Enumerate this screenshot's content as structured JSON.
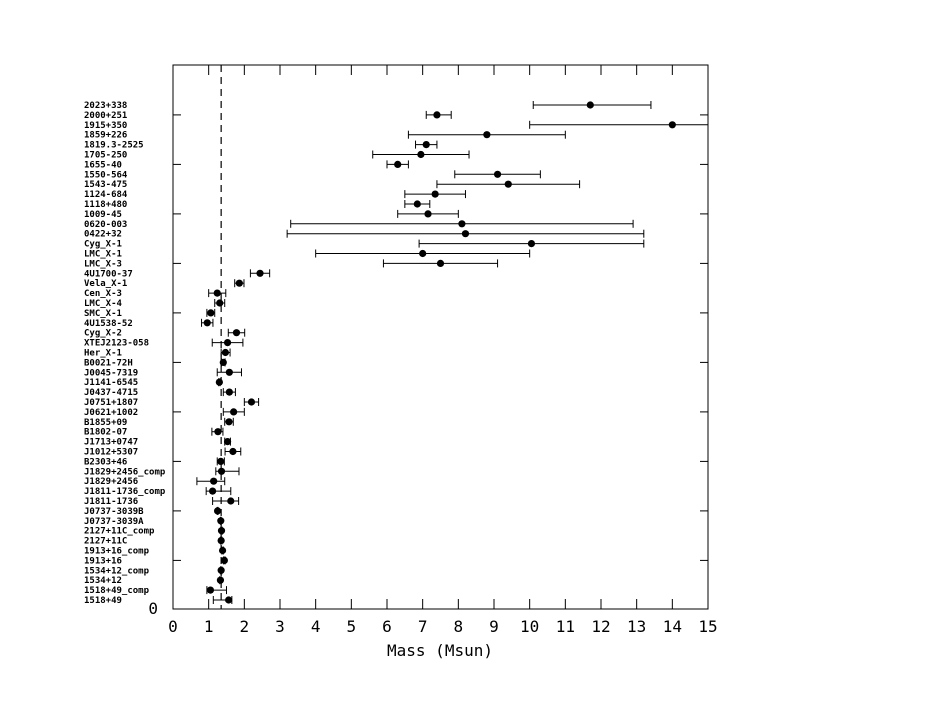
{
  "chart_data": {
    "type": "scatter",
    "title": "",
    "xlabel": "Mass (Msun)",
    "ylabel": "",
    "xlim": [
      0,
      15
    ],
    "xticks": [
      "0",
      "1",
      "2",
      "3",
      "4",
      "5",
      "6",
      "7",
      "8",
      "9",
      "10",
      "11",
      "12",
      "13",
      "14",
      "15"
    ],
    "y_zero_label": "0",
    "reference_line_x": 1.35,
    "grid": false,
    "legend": "none",
    "colors": {
      "marker": "#000000",
      "axis": "#000000",
      "background": "#ffffff"
    },
    "points": [
      {
        "name": "2023+338",
        "x": 11.7,
        "err_low": 10.1,
        "err_high": 13.4
      },
      {
        "name": "2000+251",
        "x": 7.4,
        "err_low": 7.1,
        "err_high": 7.8
      },
      {
        "name": "1915+350",
        "x": 14.0,
        "err_low": 10.0,
        "err_high": 15.0
      },
      {
        "name": "1859+226",
        "x": 8.8,
        "err_low": 6.6,
        "err_high": 11.0
      },
      {
        "name": "1819.3-2525",
        "x": 7.1,
        "err_low": 6.8,
        "err_high": 7.4
      },
      {
        "name": "1705-250",
        "x": 6.95,
        "err_low": 5.6,
        "err_high": 8.3
      },
      {
        "name": "1655-40",
        "x": 6.3,
        "err_low": 6.0,
        "err_high": 6.6
      },
      {
        "name": "1550-564",
        "x": 9.1,
        "err_low": 7.9,
        "err_high": 10.3
      },
      {
        "name": "1543-475",
        "x": 9.4,
        "err_low": 7.4,
        "err_high": 11.4
      },
      {
        "name": "1124-684",
        "x": 7.35,
        "err_low": 6.5,
        "err_high": 8.2
      },
      {
        "name": "1118+480",
        "x": 6.85,
        "err_low": 6.5,
        "err_high": 7.2
      },
      {
        "name": "1009-45",
        "x": 7.15,
        "err_low": 6.3,
        "err_high": 8.0
      },
      {
        "name": "0620-003",
        "x": 8.1,
        "err_low": 3.3,
        "err_high": 12.9
      },
      {
        "name": "0422+32",
        "x": 8.2,
        "err_low": 3.2,
        "err_high": 13.2
      },
      {
        "name": "Cyg_X-1",
        "x": 10.05,
        "err_low": 6.9,
        "err_high": 13.2
      },
      {
        "name": "LMC_X-1",
        "x": 7.0,
        "err_low": 4.0,
        "err_high": 10.0
      },
      {
        "name": "LMC_X-3",
        "x": 7.5,
        "err_low": 5.9,
        "err_high": 9.1
      },
      {
        "name": "4U1700-37",
        "x": 2.44,
        "err_low": 2.17,
        "err_high": 2.71
      },
      {
        "name": "Vela_X-1",
        "x": 1.86,
        "err_low": 1.73,
        "err_high": 1.99
      },
      {
        "name": "Cen_X-3",
        "x": 1.24,
        "err_low": 1.0,
        "err_high": 1.48
      },
      {
        "name": "LMC_X-4",
        "x": 1.31,
        "err_low": 1.17,
        "err_high": 1.45
      },
      {
        "name": "SMC_X-1",
        "x": 1.06,
        "err_low": 0.95,
        "err_high": 1.17
      },
      {
        "name": "4U1538-52",
        "x": 0.96,
        "err_low": 0.8,
        "err_high": 1.12
      },
      {
        "name": "Cyg_X-2",
        "x": 1.78,
        "err_low": 1.55,
        "err_high": 2.01
      },
      {
        "name": "XTEJ2123-058",
        "x": 1.53,
        "err_low": 1.1,
        "err_high": 1.96
      },
      {
        "name": "Her_X-1",
        "x": 1.47,
        "err_low": 1.35,
        "err_high": 1.6
      },
      {
        "name": "B0021-72H",
        "x": 1.41,
        "err_low": 1.36,
        "err_high": 1.46
      },
      {
        "name": "J0045-7319",
        "x": 1.58,
        "err_low": 1.24,
        "err_high": 1.92
      },
      {
        "name": "J1141-6545",
        "x": 1.3,
        "err_low": 1.28,
        "err_high": 1.32
      },
      {
        "name": "J0437-4715",
        "x": 1.58,
        "err_low": 1.41,
        "err_high": 1.75
      },
      {
        "name": "J0751+1807",
        "x": 2.2,
        "err_low": 2.0,
        "err_high": 2.4
      },
      {
        "name": "J0621+1002",
        "x": 1.7,
        "err_low": 1.41,
        "err_high": 2.0
      },
      {
        "name": "B1855+09",
        "x": 1.57,
        "err_low": 1.45,
        "err_high": 1.69
      },
      {
        "name": "B1802-07",
        "x": 1.26,
        "err_low": 1.09,
        "err_high": 1.4
      },
      {
        "name": "J1713+0747",
        "x": 1.53,
        "err_low": 1.45,
        "err_high": 1.61
      },
      {
        "name": "J1012+5307",
        "x": 1.68,
        "err_low": 1.46,
        "err_high": 1.9
      },
      {
        "name": "B2303+46",
        "x": 1.34,
        "err_low": 1.24,
        "err_high": 1.44
      },
      {
        "name": "J1829+2456_comp",
        "x": 1.36,
        "err_low": 1.2,
        "err_high": 1.85
      },
      {
        "name": "J1829+2456",
        "x": 1.14,
        "err_low": 0.67,
        "err_high": 1.45
      },
      {
        "name": "J1811-1736_comp",
        "x": 1.11,
        "err_low": 0.93,
        "err_high": 1.62
      },
      {
        "name": "J1811-1736",
        "x": 1.62,
        "err_low": 1.11,
        "err_high": 1.84
      },
      {
        "name": "J0737-3039B",
        "x": 1.25,
        "err_low": 1.24,
        "err_high": 1.26
      },
      {
        "name": "J0737-3039A",
        "x": 1.34,
        "err_low": 1.33,
        "err_high": 1.35
      },
      {
        "name": "2127+11C_comp",
        "x": 1.36,
        "err_low": 1.34,
        "err_high": 1.38
      },
      {
        "name": "2127+11C",
        "x": 1.35,
        "err_low": 1.33,
        "err_high": 1.37
      },
      {
        "name": "1913+16_comp",
        "x": 1.39,
        "err_low": 1.37,
        "err_high": 1.41
      },
      {
        "name": "1913+16",
        "x": 1.44,
        "err_low": 1.42,
        "err_high": 1.46
      },
      {
        "name": "1534+12_comp",
        "x": 1.35,
        "err_low": 1.33,
        "err_high": 1.37
      },
      {
        "name": "1534+12",
        "x": 1.33,
        "err_low": 1.31,
        "err_high": 1.35
      },
      {
        "name": "1518+49_comp",
        "x": 1.05,
        "err_low": 0.95,
        "err_high": 1.5
      },
      {
        "name": "1518+49",
        "x": 1.56,
        "err_low": 1.13,
        "err_high": 1.65
      }
    ]
  }
}
